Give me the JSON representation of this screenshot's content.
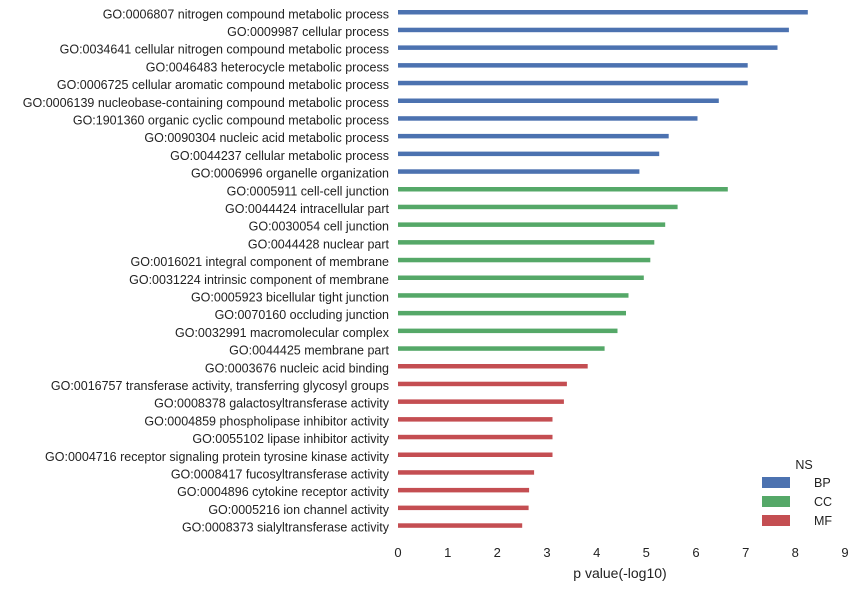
{
  "chart_data": {
    "type": "bar",
    "orientation": "horizontal",
    "xlabel": "p value(-log10)",
    "ylabel": "",
    "xlim": [
      0,
      9
    ],
    "xticks": [
      0,
      1,
      2,
      3,
      4,
      5,
      6,
      7,
      8,
      9
    ],
    "grid": false,
    "legend": {
      "title": "NS",
      "placement": "bottom-right",
      "entries": [
        {
          "label": "BP",
          "color": "#4c72b0"
        },
        {
          "label": "CC",
          "color": "#55a868"
        },
        {
          "label": "MF",
          "color": "#c44e52"
        }
      ]
    },
    "bars": [
      {
        "label": "GO:0006807 nitrogen compound metabolic process",
        "value": 8.25,
        "ns": "BP"
      },
      {
        "label": "GO:0009987 cellular process",
        "value": 7.87,
        "ns": "BP"
      },
      {
        "label": "GO:0034641 cellular nitrogen compound metabolic process",
        "value": 7.64,
        "ns": "BP"
      },
      {
        "label": "GO:0046483 heterocycle metabolic process",
        "value": 7.04,
        "ns": "BP"
      },
      {
        "label": "GO:0006725 cellular aromatic compound metabolic process",
        "value": 7.04,
        "ns": "BP"
      },
      {
        "label": "GO:0006139 nucleobase-containing compound metabolic process",
        "value": 6.46,
        "ns": "BP"
      },
      {
        "label": "GO:1901360 organic cyclic compound metabolic process",
        "value": 6.03,
        "ns": "BP"
      },
      {
        "label": "GO:0090304 nucleic acid metabolic process",
        "value": 5.45,
        "ns": "BP"
      },
      {
        "label": "GO:0044237 cellular metabolic process",
        "value": 5.26,
        "ns": "BP"
      },
      {
        "label": "GO:0006996 organelle organization",
        "value": 4.86,
        "ns": "BP"
      },
      {
        "label": "GO:0005911 cell-cell junction",
        "value": 6.64,
        "ns": "CC"
      },
      {
        "label": "GO:0044424 intracellular part",
        "value": 5.63,
        "ns": "CC"
      },
      {
        "label": "GO:0030054 cell junction",
        "value": 5.38,
        "ns": "CC"
      },
      {
        "label": "GO:0044428 nuclear part",
        "value": 5.16,
        "ns": "CC"
      },
      {
        "label": "GO:0016021 integral component of membrane",
        "value": 5.08,
        "ns": "CC"
      },
      {
        "label": "GO:0031224 intrinsic component of membrane",
        "value": 4.95,
        "ns": "CC"
      },
      {
        "label": "GO:0005923 bicellular tight junction",
        "value": 4.64,
        "ns": "CC"
      },
      {
        "label": "GO:0070160 occluding junction",
        "value": 4.59,
        "ns": "CC"
      },
      {
        "label": "GO:0032991 macromolecular complex",
        "value": 4.42,
        "ns": "CC"
      },
      {
        "label": "GO:0044425 membrane part",
        "value": 4.16,
        "ns": "CC"
      },
      {
        "label": "GO:0003676 nucleic acid binding",
        "value": 3.82,
        "ns": "MF"
      },
      {
        "label": "GO:0016757 transferase activity, transferring glycosyl groups",
        "value": 3.4,
        "ns": "MF"
      },
      {
        "label": "GO:0008378 galactosyltransferase activity",
        "value": 3.34,
        "ns": "MF"
      },
      {
        "label": "GO:0004859 phospholipase inhibitor activity",
        "value": 3.11,
        "ns": "MF"
      },
      {
        "label": "GO:0055102 lipase inhibitor activity",
        "value": 3.11,
        "ns": "MF"
      },
      {
        "label": "GO:0004716 receptor signaling protein tyrosine kinase activity",
        "value": 3.11,
        "ns": "MF"
      },
      {
        "label": "GO:0008417 fucosyltransferase activity",
        "value": 2.74,
        "ns": "MF"
      },
      {
        "label": "GO:0004896 cytokine receptor activity",
        "value": 2.64,
        "ns": "MF"
      },
      {
        "label": "GO:0005216 ion channel activity",
        "value": 2.63,
        "ns": "MF"
      },
      {
        "label": "GO:0008373 sialyltransferase activity",
        "value": 2.5,
        "ns": "MF"
      }
    ]
  }
}
